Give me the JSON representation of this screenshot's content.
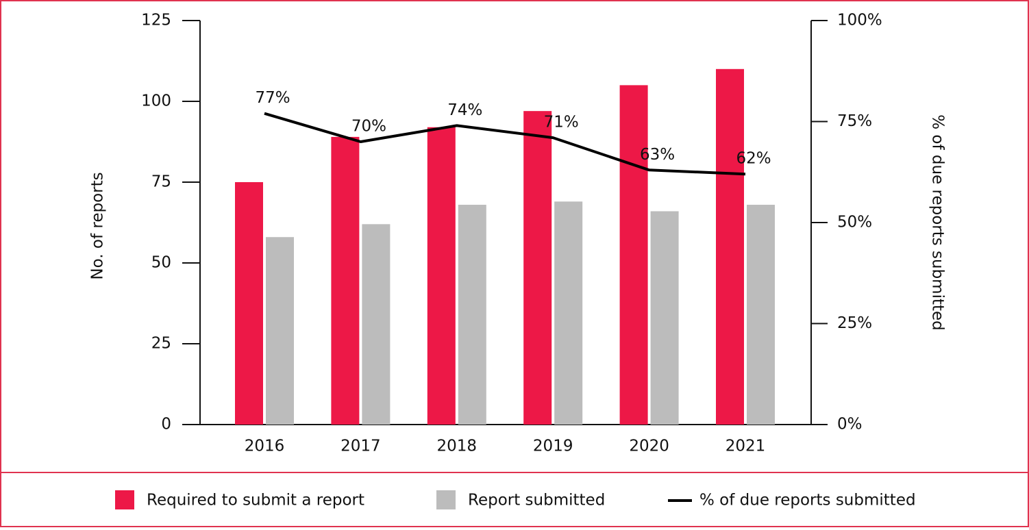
{
  "chart_data": {
    "type": "bar",
    "categories": [
      "2016",
      "2017",
      "2018",
      "2019",
      "2020",
      "2021"
    ],
    "series": [
      {
        "name": "Required to submit a report",
        "color": "#ed1847",
        "values": [
          75,
          89,
          92,
          97,
          105,
          110
        ]
      },
      {
        "name": "Report submitted",
        "color": "#bcbcbc",
        "values": [
          58,
          62,
          68,
          69,
          66,
          68
        ]
      },
      {
        "name": "% of due reports submitted",
        "color": "#000000",
        "type": "line",
        "axis": "y2",
        "values": [
          77,
          70,
          74,
          71,
          63,
          62
        ],
        "value_labels": [
          "77%",
          "70%",
          "74%",
          "71%",
          "63%",
          "62%"
        ]
      }
    ],
    "ylabel": "No. of reports",
    "y2label": "% of due reports submitted",
    "ylim": [
      0,
      125
    ],
    "yticks": [
      0,
      25,
      50,
      75,
      100,
      125
    ],
    "y2lim": [
      0,
      100
    ],
    "y2ticks": [
      {
        "value": 0,
        "label": "0%"
      },
      {
        "value": 25,
        "label": "25%"
      },
      {
        "value": 50,
        "label": "50%"
      },
      {
        "value": 75,
        "label": "75%"
      },
      {
        "value": 100,
        "label": "100%"
      }
    ],
    "legend": "bottom"
  }
}
